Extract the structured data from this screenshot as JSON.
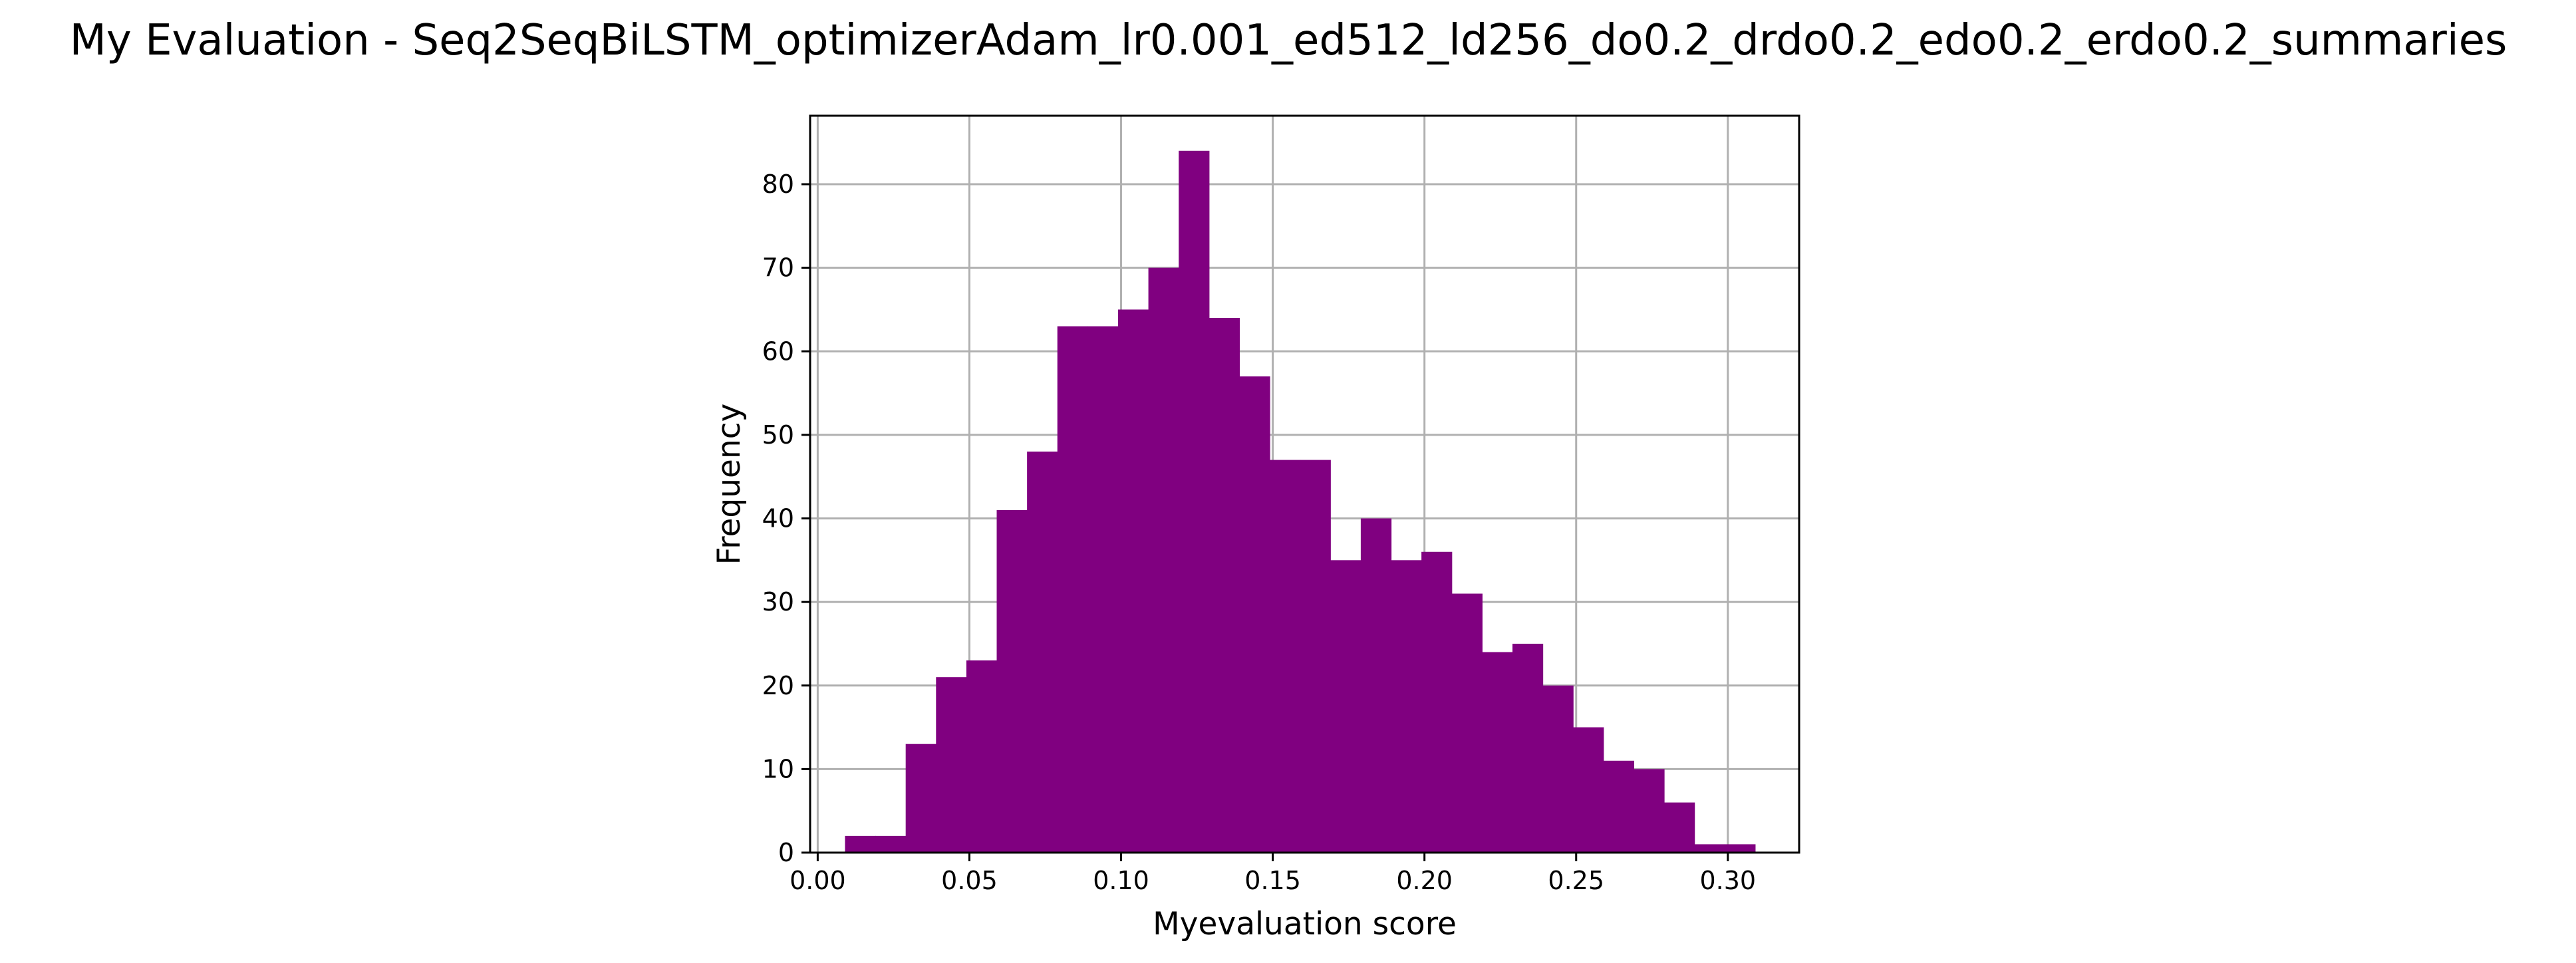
{
  "chart_data": {
    "type": "bar",
    "title": "My Evaluation - Seq2SeqBiLSTM_optimizerAdam_lr0.001_ed512_ld256_do0.2_drdo0.2_edo0.2_erdo0.2_summaries",
    "xlabel": "Myevaluation score",
    "ylabel": "Frequency",
    "xlim": [
      -0.0025,
      0.3235
    ],
    "ylim": [
      0,
      88.2
    ],
    "grid": true,
    "bar_color": "#800080",
    "bin_edges": [
      0.009,
      0.019,
      0.029,
      0.039,
      0.049,
      0.059,
      0.069,
      0.079,
      0.089,
      0.099,
      0.109,
      0.119,
      0.129,
      0.139,
      0.149,
      0.159,
      0.169,
      0.179,
      0.189,
      0.199,
      0.209,
      0.219,
      0.229,
      0.239,
      0.249,
      0.259,
      0.269,
      0.279,
      0.289,
      0.299,
      0.309
    ],
    "values": [
      2,
      2,
      13,
      21,
      23,
      41,
      48,
      63,
      63,
      65,
      70,
      84,
      64,
      57,
      47,
      47,
      35,
      40,
      35,
      36,
      31,
      24,
      25,
      20,
      15,
      11,
      10,
      6,
      1,
      1
    ],
    "x_ticks": [
      {
        "value": 0.0,
        "label": "0.00"
      },
      {
        "value": 0.05,
        "label": "0.05"
      },
      {
        "value": 0.1,
        "label": "0.10"
      },
      {
        "value": 0.15,
        "label": "0.15"
      },
      {
        "value": 0.2,
        "label": "0.20"
      },
      {
        "value": 0.25,
        "label": "0.25"
      },
      {
        "value": 0.3,
        "label": "0.30"
      }
    ],
    "y_ticks": [
      {
        "value": 0,
        "label": "0"
      },
      {
        "value": 10,
        "label": "10"
      },
      {
        "value": 20,
        "label": "20"
      },
      {
        "value": 30,
        "label": "30"
      },
      {
        "value": 40,
        "label": "40"
      },
      {
        "value": 50,
        "label": "50"
      },
      {
        "value": 60,
        "label": "60"
      },
      {
        "value": 70,
        "label": "70"
      },
      {
        "value": 80,
        "label": "80"
      }
    ]
  }
}
